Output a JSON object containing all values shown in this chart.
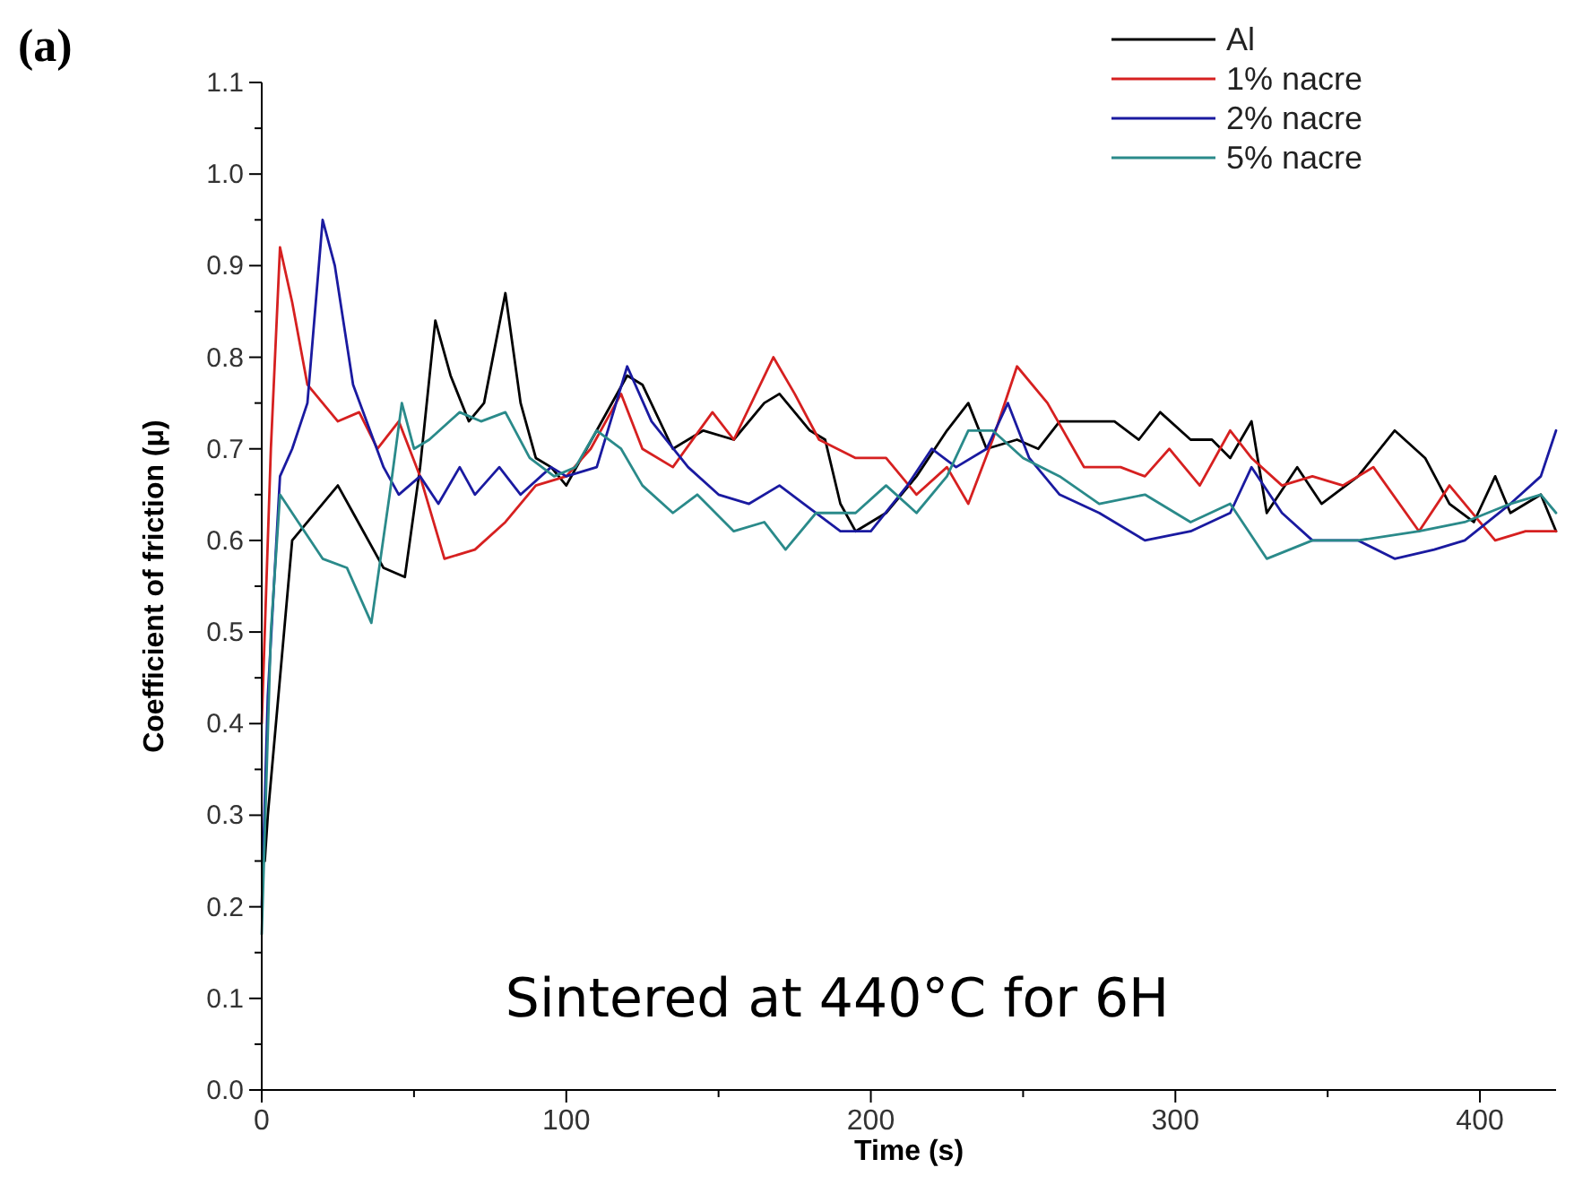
{
  "chart_data": {
    "type": "line",
    "xlabel": "Time (s)",
    "ylabel": "Coefficient of friction (μ)",
    "annotations": [
      "(a)",
      "Sintered at 440°C for 6H"
    ],
    "xlim": [
      0,
      425
    ],
    "xticks": [
      0,
      {
        "value": 50,
        "label": null
      },
      100,
      {
        "value": 150,
        "label": null
      },
      200,
      {
        "value": 250,
        "label": null
      },
      300,
      {
        "value": 350,
        "label": null
      },
      400
    ],
    "ylim": [
      0,
      1.1
    ],
    "yticks": [
      {
        "value": 0,
        "label": "0.0"
      },
      {
        "value": 0.05,
        "label": null
      },
      {
        "value": 0.1,
        "label": "0.1"
      },
      {
        "value": 0.15,
        "label": null
      },
      {
        "value": 0.2,
        "label": "0.2"
      },
      {
        "value": 0.25,
        "label": null
      },
      {
        "value": 0.3,
        "label": "0.3"
      },
      {
        "value": 0.35,
        "label": null
      },
      {
        "value": 0.4,
        "label": "0.4"
      },
      {
        "value": 0.45,
        "label": null
      },
      {
        "value": 0.5,
        "label": "0.5"
      },
      {
        "value": 0.55,
        "label": null
      },
      {
        "value": 0.6,
        "label": "0.6"
      },
      {
        "value": 0.65,
        "label": null
      },
      {
        "value": 0.7,
        "label": "0.7"
      },
      {
        "value": 0.75,
        "label": null
      },
      {
        "value": 0.8,
        "label": "0.8"
      },
      {
        "value": 0.85,
        "label": null
      },
      {
        "value": 0.9,
        "label": "0.9"
      },
      {
        "value": 0.95,
        "label": null
      },
      {
        "value": 1,
        "label": "1.0"
      },
      {
        "value": 1.05,
        "label": null
      },
      {
        "value": 1.1,
        "label": "1.1"
      }
    ],
    "grid": false,
    "legend": "top right",
    "marker": "none",
    "line_style": "solid",
    "series": [
      {
        "name": "Al",
        "color": "#000000",
        "x": [
          1,
          2,
          10,
          15,
          25,
          30,
          40,
          47,
          52,
          57,
          62,
          68,
          73,
          80,
          85,
          90,
          95,
          100,
          110,
          120,
          125,
          135,
          145,
          155,
          165,
          170,
          180,
          185,
          190,
          195,
          205,
          215,
          225,
          232,
          238,
          248,
          255,
          262,
          270,
          280,
          288,
          295,
          305,
          312,
          318,
          325,
          330,
          340,
          348,
          360,
          372,
          382,
          390,
          398,
          405,
          410,
          420,
          425
        ],
        "values": [
          0.25,
          0.3,
          0.6,
          0.62,
          0.66,
          0.63,
          0.57,
          0.56,
          0.68,
          0.84,
          0.78,
          0.73,
          0.75,
          0.87,
          0.75,
          0.69,
          0.68,
          0.66,
          0.72,
          0.78,
          0.77,
          0.7,
          0.72,
          0.71,
          0.75,
          0.76,
          0.72,
          0.71,
          0.64,
          0.61,
          0.63,
          0.67,
          0.72,
          0.75,
          0.7,
          0.71,
          0.7,
          0.73,
          0.73,
          0.73,
          0.71,
          0.74,
          0.71,
          0.71,
          0.69,
          0.73,
          0.63,
          0.68,
          0.64,
          0.67,
          0.72,
          0.69,
          0.64,
          0.62,
          0.67,
          0.63,
          0.65,
          0.61
        ]
      },
      {
        "name": "1% nacre",
        "color": "#d62020",
        "x": [
          0,
          3,
          6,
          10,
          15,
          25,
          32,
          38,
          45,
          52,
          60,
          70,
          80,
          90,
          100,
          108,
          118,
          125,
          135,
          148,
          155,
          168,
          175,
          183,
          195,
          205,
          215,
          225,
          232,
          240,
          248,
          258,
          270,
          282,
          290,
          298,
          308,
          318,
          325,
          335,
          345,
          355,
          365,
          380,
          390,
          405,
          415,
          425
        ],
        "values": [
          0.4,
          0.7,
          0.92,
          0.86,
          0.77,
          0.73,
          0.74,
          0.7,
          0.73,
          0.67,
          0.58,
          0.59,
          0.62,
          0.66,
          0.67,
          0.7,
          0.76,
          0.7,
          0.68,
          0.74,
          0.71,
          0.8,
          0.76,
          0.71,
          0.69,
          0.69,
          0.65,
          0.68,
          0.64,
          0.71,
          0.79,
          0.75,
          0.68,
          0.68,
          0.67,
          0.7,
          0.66,
          0.72,
          0.69,
          0.66,
          0.67,
          0.66,
          0.68,
          0.61,
          0.66,
          0.6,
          0.61,
          0.61
        ]
      },
      {
        "name": "2% nacre",
        "color": "#1a1aa0",
        "x": [
          0,
          2,
          6,
          10,
          15,
          20,
          24,
          30,
          40,
          45,
          52,
          58,
          65,
          70,
          78,
          85,
          95,
          100,
          110,
          120,
          128,
          140,
          150,
          160,
          170,
          178,
          190,
          200,
          212,
          220,
          228,
          238,
          245,
          252,
          262,
          275,
          290,
          305,
          318,
          325,
          335,
          345,
          360,
          372,
          385,
          395,
          410,
          420,
          425
        ],
        "values": [
          0.2,
          0.43,
          0.67,
          0.7,
          0.75,
          0.95,
          0.9,
          0.77,
          0.68,
          0.65,
          0.67,
          0.64,
          0.68,
          0.65,
          0.68,
          0.65,
          0.68,
          0.67,
          0.68,
          0.79,
          0.73,
          0.68,
          0.65,
          0.64,
          0.66,
          0.64,
          0.61,
          0.61,
          0.66,
          0.7,
          0.68,
          0.7,
          0.75,
          0.69,
          0.65,
          0.63,
          0.6,
          0.61,
          0.63,
          0.68,
          0.63,
          0.6,
          0.6,
          0.58,
          0.59,
          0.6,
          0.64,
          0.67,
          0.72
        ]
      },
      {
        "name": "5% nacre",
        "color": "#2a8a8a",
        "x": [
          0,
          3,
          6,
          12,
          20,
          28,
          36,
          42,
          46,
          50,
          55,
          65,
          72,
          80,
          88,
          96,
          103,
          110,
          118,
          125,
          135,
          143,
          155,
          165,
          172,
          182,
          195,
          205,
          215,
          225,
          232,
          240,
          250,
          262,
          275,
          290,
          305,
          318,
          330,
          345,
          360,
          380,
          395,
          410,
          420,
          425
        ],
        "values": [
          0.17,
          0.5,
          0.65,
          0.62,
          0.58,
          0.57,
          0.51,
          0.65,
          0.75,
          0.7,
          0.71,
          0.74,
          0.73,
          0.74,
          0.69,
          0.67,
          0.68,
          0.72,
          0.7,
          0.66,
          0.63,
          0.65,
          0.61,
          0.62,
          0.59,
          0.63,
          0.63,
          0.66,
          0.63,
          0.67,
          0.72,
          0.72,
          0.69,
          0.67,
          0.64,
          0.65,
          0.62,
          0.64,
          0.58,
          0.6,
          0.6,
          0.61,
          0.62,
          0.64,
          0.65,
          0.63
        ]
      }
    ]
  }
}
